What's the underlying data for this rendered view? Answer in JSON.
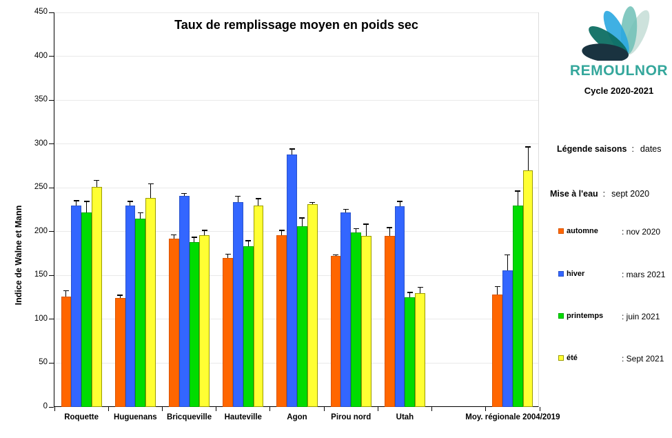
{
  "chart_data": {
    "type": "bar",
    "title": "Taux de remplissage moyen  en poids sec",
    "ylabel": "Indice de Walne et Mann",
    "ylim": [
      0,
      450
    ],
    "ytick_step": 50,
    "grid": true,
    "legend_position": "right-panel",
    "error_bars": "upper-only",
    "categories": [
      "Roquette",
      "Huguenans",
      "Bricqueville",
      "Hauteville",
      "Agon",
      "Pirou nord",
      "Utah",
      "",
      "Moy. régionale 2004/2019"
    ],
    "series": [
      {
        "name": "automne",
        "color": "#FF6600",
        "border": "#D95500",
        "values": [
          126,
          124,
          192,
          170,
          196,
          172,
          195,
          null,
          128
        ],
        "errors": [
          7,
          4,
          5,
          5,
          6,
          2,
          10,
          null,
          10
        ]
      },
      {
        "name": "hiver",
        "color": "#3366FF",
        "border": "#2952CC",
        "values": [
          230,
          230,
          241,
          234,
          288,
          222,
          229,
          null,
          156
        ],
        "errors": [
          6,
          5,
          3,
          7,
          7,
          4,
          6,
          null,
          18
        ]
      },
      {
        "name": "printemps",
        "color": "#00DC00",
        "border": "#00AA00",
        "values": [
          222,
          215,
          188,
          183,
          206,
          199,
          125,
          null,
          230
        ],
        "errors": [
          13,
          7,
          6,
          7,
          10,
          5,
          6,
          null,
          17
        ]
      },
      {
        "name": "été",
        "color": "#FFFF33",
        "border": "#9A9A00",
        "values": [
          251,
          238,
          196,
          230,
          231,
          195,
          130,
          null,
          270
        ],
        "errors": [
          8,
          17,
          6,
          8,
          3,
          14,
          7,
          null,
          27
        ]
      }
    ]
  },
  "branding": {
    "logo_text": "REMOULNOR",
    "cycle": "Cycle 2020-2021",
    "logo_accent": "#35a79c"
  },
  "legend_panel": {
    "heading": {
      "label": "Légende saisons",
      "sep": ":",
      "value": "dates"
    },
    "launch": {
      "label": "Mise à l'eau",
      "sep": ":",
      "value": "sept 2020"
    },
    "items": [
      {
        "label": "automne",
        "date": ": nov 2020"
      },
      {
        "label": "hiver",
        "date": ": mars 2021"
      },
      {
        "label": "printemps",
        "date": ":  juin 2021"
      },
      {
        "label": "été",
        "date": ": Sept 2021"
      }
    ]
  }
}
